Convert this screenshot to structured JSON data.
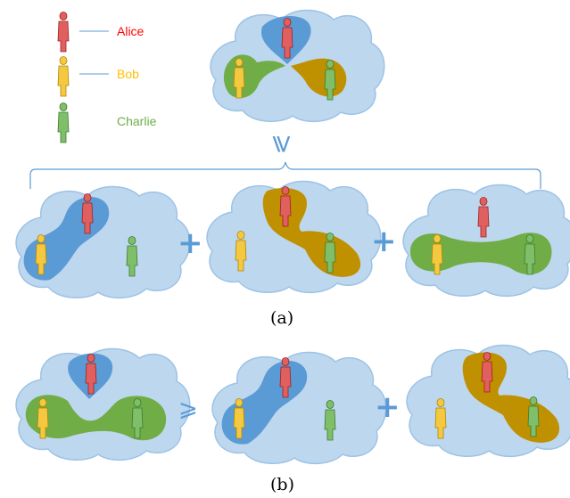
{
  "legend": [
    {
      "name": "Alice",
      "color": "#ff0000"
    },
    {
      "name": "Bob",
      "color": "#ffc000"
    },
    {
      "name": "Charlie",
      "color": "#70ad47"
    }
  ],
  "colors": {
    "cloud_fill": "#bdd7ee",
    "cloud_stroke": "#9dc3e6",
    "alice_region": "#5b9bd5",
    "bob_region": "#bf9000",
    "charlie_region": "#70ad47",
    "symbol": "#5b9bd5"
  },
  "symbols": {
    "geq_large": "⩾",
    "geq_small": "⩾",
    "plus": "+"
  },
  "captions": {
    "a": "(a)",
    "b": "(b)"
  }
}
